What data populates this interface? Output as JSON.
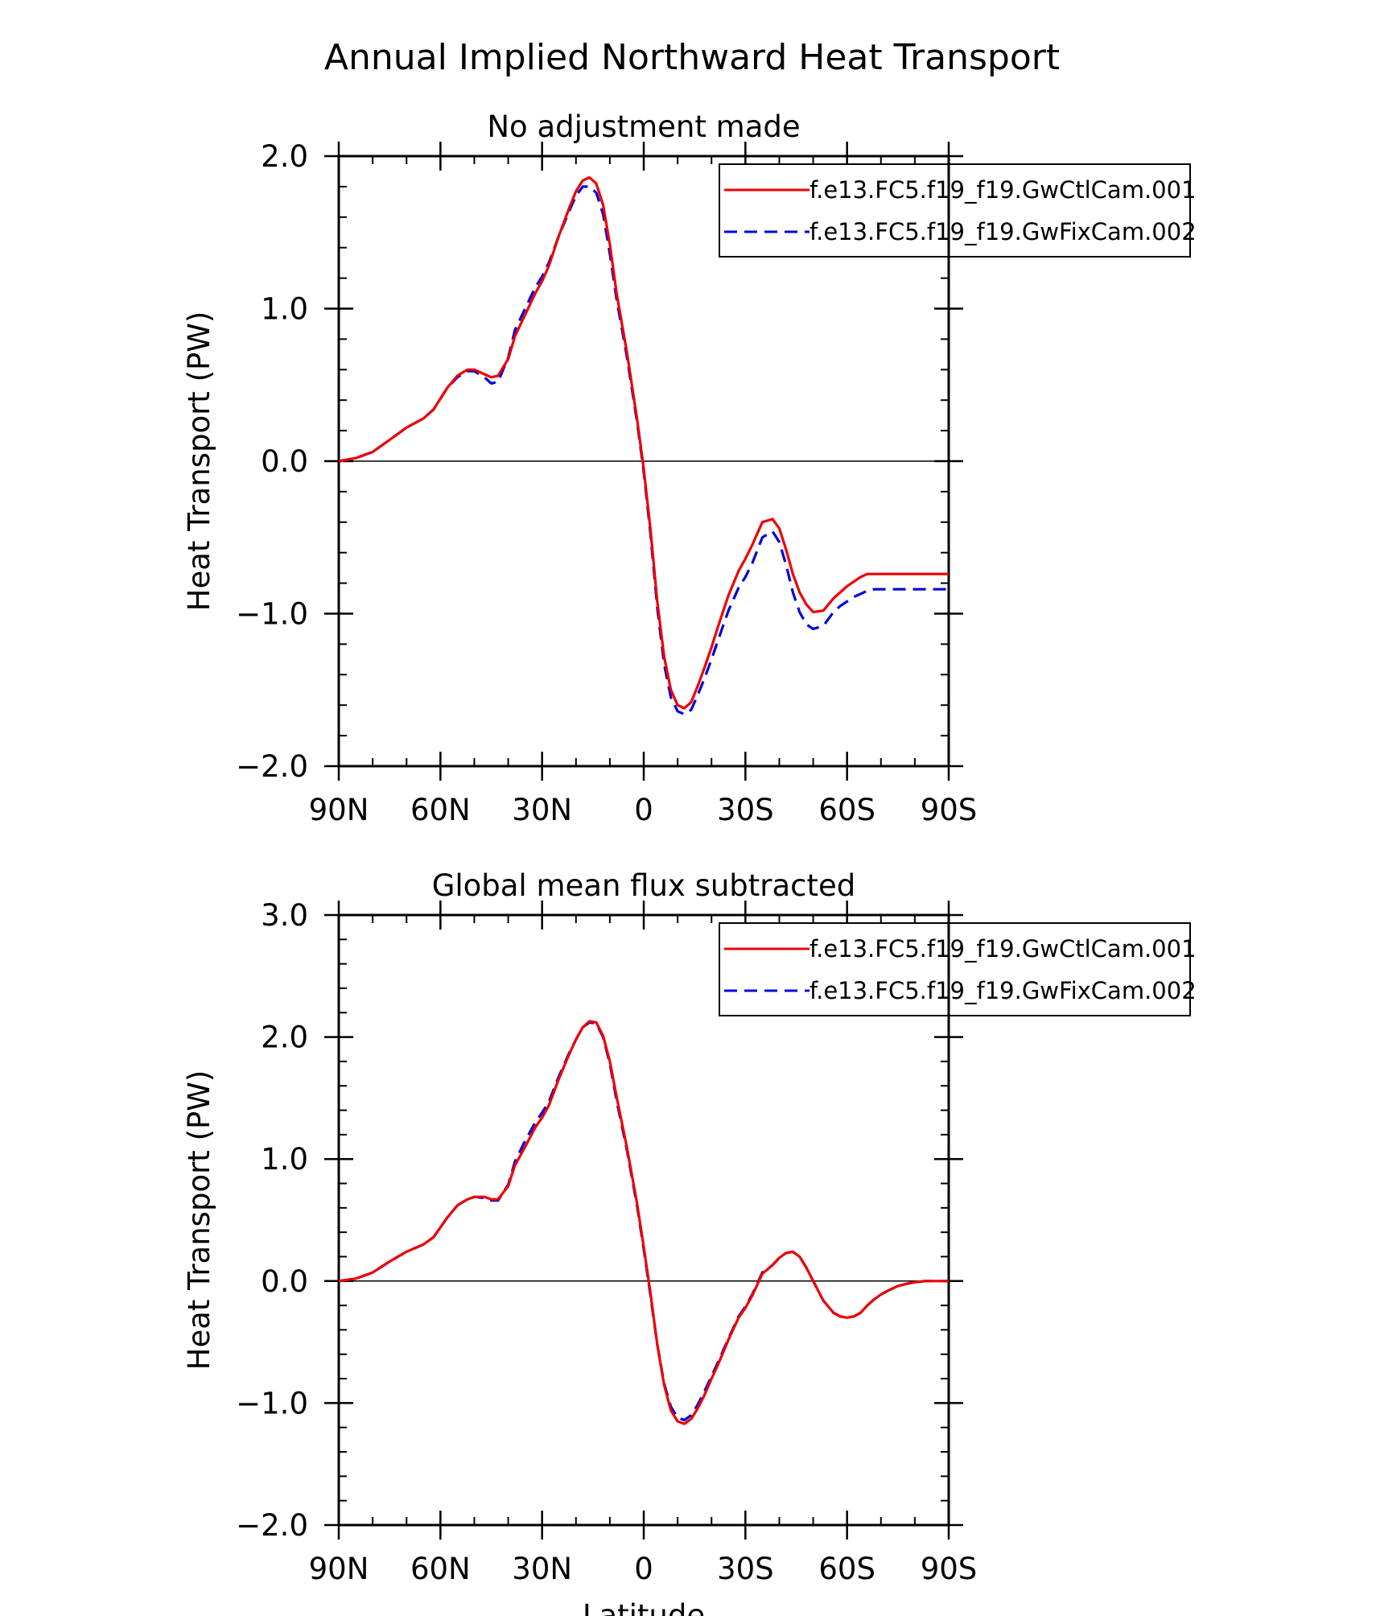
{
  "main_title": "Annual Implied Northward Heat Transport",
  "colors": {
    "control": "#ee0000",
    "fix": "#0000dd",
    "axis": "#000000",
    "background": "#ffffff"
  },
  "chart_data": [
    {
      "type": "line",
      "title": "No adjustment made",
      "xlabel": "",
      "ylabel": "Heat Transport (PW)",
      "xlim": [
        90,
        -90
      ],
      "ylim": [
        -2.0,
        2.0
      ],
      "xticks": [
        90,
        60,
        30,
        0,
        -30,
        -60,
        -90
      ],
      "xtick_labels": [
        "90N",
        "60N",
        "30N",
        "0",
        "30S",
        "60S",
        "90S"
      ],
      "yticks": [
        -2.0,
        -1.0,
        0.0,
        1.0,
        2.0
      ],
      "ytick_labels": [
        "−2.0",
        "−1.0",
        "0.0",
        "1.0",
        "2.0"
      ],
      "legend_position": "top-right",
      "grid": false,
      "zero_line": true,
      "x": [
        90,
        85,
        80,
        75,
        70,
        65,
        62,
        58,
        55,
        52,
        50,
        47,
        45,
        43,
        40,
        38,
        35,
        32,
        30,
        28,
        25,
        22,
        20,
        18,
        16,
        14,
        12,
        10,
        8,
        5,
        2,
        0,
        -2,
        -4,
        -6,
        -8,
        -10,
        -12,
        -14,
        -16,
        -18,
        -20,
        -22,
        -25,
        -28,
        -30,
        -32,
        -35,
        -38,
        -40,
        -42,
        -44,
        -46,
        -48,
        -50,
        -53,
        -56,
        -58,
        -60,
        -62,
        -64,
        -66,
        -68,
        -70,
        -72,
        -75,
        -78,
        -80,
        -83,
        -86,
        -90
      ],
      "series": [
        {
          "name": "f.e13.FC5.f19_f19.GwCtlCam.001",
          "style": "solid",
          "color": "#ee0000",
          "values": [
            0.0,
            0.02,
            0.06,
            0.14,
            0.22,
            0.28,
            0.34,
            0.48,
            0.56,
            0.6,
            0.6,
            0.57,
            0.55,
            0.56,
            0.67,
            0.82,
            0.96,
            1.1,
            1.18,
            1.28,
            1.48,
            1.66,
            1.77,
            1.84,
            1.86,
            1.82,
            1.68,
            1.42,
            1.1,
            0.72,
            0.28,
            -0.05,
            -0.45,
            -0.92,
            -1.28,
            -1.5,
            -1.6,
            -1.62,
            -1.58,
            -1.47,
            -1.35,
            -1.22,
            -1.08,
            -0.88,
            -0.72,
            -0.64,
            -0.55,
            -0.4,
            -0.38,
            -0.44,
            -0.58,
            -0.74,
            -0.86,
            -0.94,
            -0.99,
            -0.98,
            -0.9,
            -0.86,
            -0.82,
            -0.79,
            -0.76,
            -0.74,
            -0.74,
            -0.74,
            -0.74,
            -0.74,
            -0.74,
            -0.74,
            -0.74,
            -0.74,
            -0.74
          ]
        },
        {
          "name": "f.e13.FC5.f19_f19.GwFixCam.002",
          "style": "dashed",
          "color": "#0000dd",
          "values": [
            0.0,
            0.02,
            0.06,
            0.14,
            0.22,
            0.28,
            0.34,
            0.48,
            0.55,
            0.59,
            0.59,
            0.55,
            0.51,
            0.52,
            0.68,
            0.86,
            1.0,
            1.14,
            1.21,
            1.3,
            1.48,
            1.64,
            1.74,
            1.8,
            1.8,
            1.76,
            1.62,
            1.36,
            1.06,
            0.69,
            0.26,
            -0.07,
            -0.48,
            -0.96,
            -1.33,
            -1.55,
            -1.64,
            -1.66,
            -1.63,
            -1.53,
            -1.42,
            -1.3,
            -1.17,
            -0.98,
            -0.83,
            -0.76,
            -0.67,
            -0.5,
            -0.46,
            -0.53,
            -0.68,
            -0.86,
            -0.99,
            -1.07,
            -1.1,
            -1.08,
            -0.99,
            -0.95,
            -0.92,
            -0.89,
            -0.87,
            -0.85,
            -0.84,
            -0.84,
            -0.84,
            -0.84,
            -0.84,
            -0.84,
            -0.84,
            -0.84,
            -0.84
          ]
        }
      ]
    },
    {
      "type": "line",
      "title": "Global mean flux subtracted",
      "xlabel": "Latitude",
      "ylabel": "Heat Transport (PW)",
      "xlim": [
        90,
        -90
      ],
      "ylim": [
        -2.0,
        3.0
      ],
      "xticks": [
        90,
        60,
        30,
        0,
        -30,
        -60,
        -90
      ],
      "xtick_labels": [
        "90N",
        "60N",
        "30N",
        "0",
        "30S",
        "60S",
        "90S"
      ],
      "yticks": [
        -2.0,
        -1.0,
        0.0,
        1.0,
        2.0,
        3.0
      ],
      "ytick_labels": [
        "−2.0",
        "−1.0",
        "0.0",
        "1.0",
        "2.0",
        "3.0"
      ],
      "legend_position": "top-right",
      "grid": false,
      "zero_line": true,
      "x": [
        90,
        85,
        80,
        75,
        70,
        65,
        62,
        58,
        55,
        52,
        50,
        47,
        45,
        43,
        40,
        38,
        35,
        32,
        30,
        28,
        25,
        22,
        20,
        18,
        16,
        14,
        12,
        10,
        8,
        5,
        2,
        0,
        -2,
        -4,
        -6,
        -8,
        -10,
        -12,
        -14,
        -16,
        -18,
        -20,
        -22,
        -25,
        -28,
        -30,
        -32,
        -35,
        -38,
        -40,
        -42,
        -44,
        -46,
        -48,
        -50,
        -53,
        -56,
        -58,
        -60,
        -62,
        -64,
        -66,
        -68,
        -70,
        -72,
        -75,
        -78,
        -80,
        -83,
        -86,
        -90
      ],
      "series": [
        {
          "name": "f.e13.FC5.f19_f19.GwCtlCam.001",
          "style": "solid",
          "color": "#ee0000",
          "values": [
            0.0,
            0.02,
            0.07,
            0.16,
            0.24,
            0.3,
            0.36,
            0.52,
            0.62,
            0.67,
            0.69,
            0.69,
            0.67,
            0.67,
            0.78,
            0.95,
            1.1,
            1.26,
            1.34,
            1.44,
            1.66,
            1.86,
            1.98,
            2.08,
            2.13,
            2.12,
            2.01,
            1.8,
            1.51,
            1.1,
            0.64,
            0.28,
            -0.1,
            -0.52,
            -0.85,
            -1.06,
            -1.15,
            -1.17,
            -1.13,
            -1.04,
            -0.93,
            -0.8,
            -0.68,
            -0.48,
            -0.3,
            -0.22,
            -0.12,
            0.06,
            0.13,
            0.19,
            0.23,
            0.24,
            0.2,
            0.11,
            0.0,
            -0.16,
            -0.26,
            -0.29,
            -0.3,
            -0.29,
            -0.26,
            -0.2,
            -0.15,
            -0.11,
            -0.08,
            -0.04,
            -0.02,
            -0.01,
            0.0,
            0.0,
            0.0
          ]
        },
        {
          "name": "f.e13.FC5.f19_f19.GwFixCam.002",
          "style": "dashed",
          "color": "#0000dd",
          "values": [
            0.0,
            0.02,
            0.07,
            0.16,
            0.24,
            0.3,
            0.36,
            0.52,
            0.62,
            0.67,
            0.69,
            0.68,
            0.66,
            0.66,
            0.79,
            0.98,
            1.15,
            1.3,
            1.38,
            1.47,
            1.68,
            1.87,
            1.98,
            2.08,
            2.12,
            2.11,
            2.0,
            1.78,
            1.48,
            1.08,
            0.62,
            0.26,
            -0.12,
            -0.52,
            -0.84,
            -1.03,
            -1.12,
            -1.14,
            -1.1,
            -1.01,
            -0.9,
            -0.78,
            -0.66,
            -0.47,
            -0.29,
            -0.21,
            -0.11,
            0.07,
            0.13,
            0.19,
            0.23,
            0.24,
            0.2,
            0.11,
            0.0,
            -0.16,
            -0.26,
            -0.29,
            -0.3,
            -0.29,
            -0.26,
            -0.2,
            -0.15,
            -0.11,
            -0.08,
            -0.04,
            -0.02,
            -0.01,
            0.0,
            0.0,
            0.0
          ]
        }
      ]
    }
  ]
}
